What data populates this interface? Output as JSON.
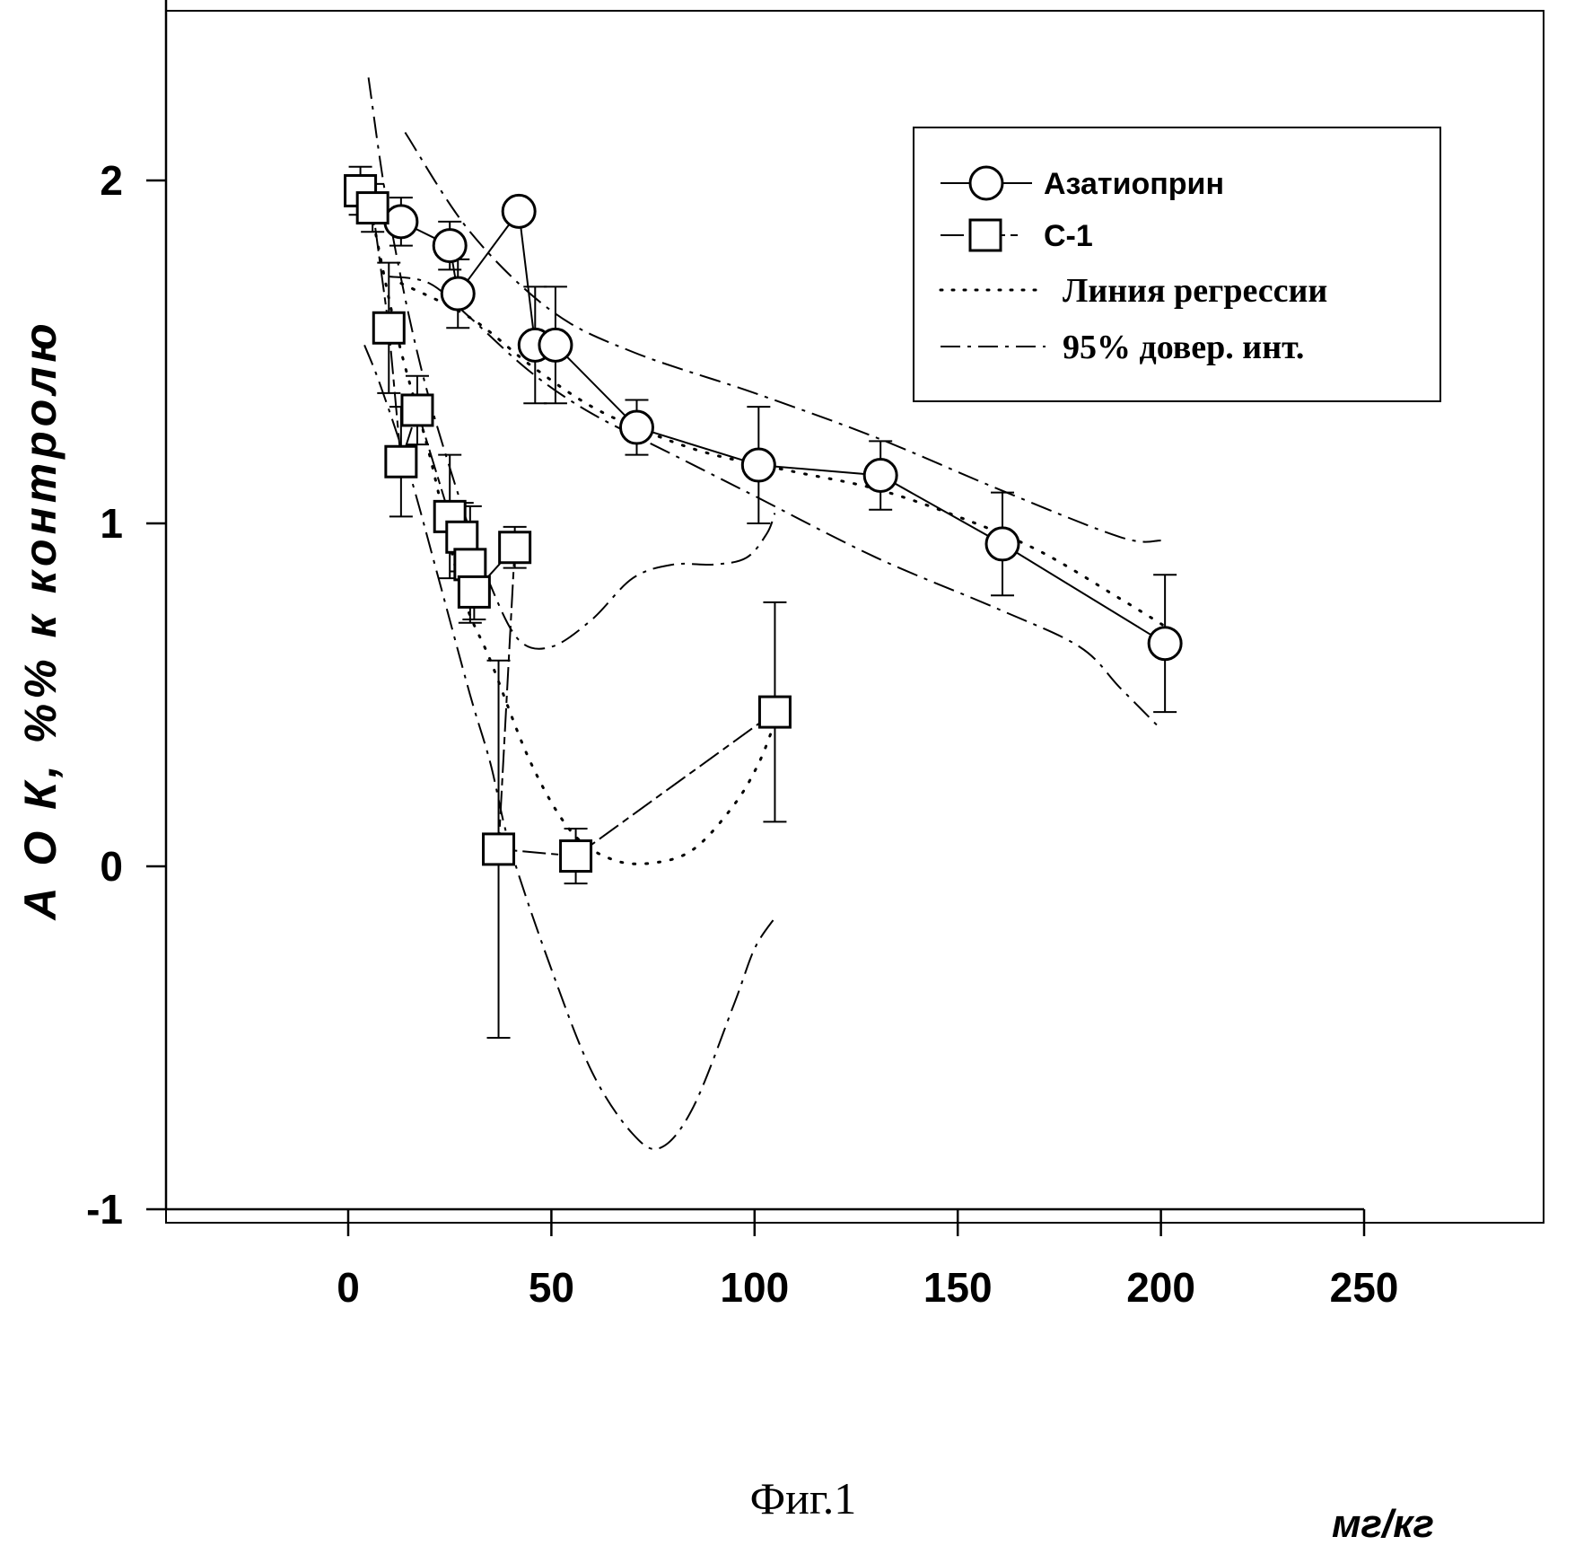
{
  "chart_data": {
    "type": "scatter",
    "xlabel": "мг/кг",
    "ylabel": "А О К, %% к контролю",
    "caption": "Фиг.1",
    "xlim": [
      -45,
      250
    ],
    "ylim": [
      -1,
      2.5
    ],
    "xticks": [
      0,
      50,
      100,
      150,
      200,
      250
    ],
    "yticks": [
      -1,
      0,
      1,
      2
    ],
    "xtick_labels": [
      "0",
      "50",
      "100",
      "150",
      "200",
      "250"
    ],
    "ytick_labels": [
      "-1",
      "0",
      "1",
      "2"
    ],
    "legend_position": "top-right",
    "legend": {
      "azathioprine": "Азатиоприн",
      "c1": "С-1",
      "regression": "Линия регрессии",
      "ci": "95% довер. инт."
    },
    "series": [
      {
        "name": "Азатиоприн",
        "marker": "circle",
        "x": [
          13,
          25,
          27,
          42,
          46,
          51,
          71,
          101,
          131,
          161,
          201
        ],
        "y": [
          1.88,
          1.81,
          1.67,
          1.91,
          1.52,
          1.52,
          1.28,
          1.17,
          1.14,
          0.94,
          0.65
        ],
        "err": [
          0.07,
          0.07,
          0.1,
          0,
          0.17,
          0.17,
          0.08,
          0.17,
          0.1,
          0.15,
          0.2
        ]
      },
      {
        "name": "С-1",
        "marker": "square",
        "x": [
          3,
          6,
          10,
          13,
          17,
          25,
          28,
          30,
          31,
          41,
          37,
          56,
          105
        ],
        "y": [
          1.97,
          1.92,
          1.57,
          1.18,
          1.33,
          1.02,
          0.96,
          0.88,
          0.8,
          0.93,
          0.05,
          0.03,
          0.45
        ],
        "err": [
          0.07,
          0.07,
          0.19,
          0.16,
          0.1,
          0.18,
          0.1,
          0.17,
          0.08,
          0.06,
          0.55,
          0.08,
          0.32
        ]
      },
      {
        "name": "Линия регрессии",
        "style": "dotted",
        "segments": [
          {
            "x": [
              13,
              30,
              45,
              60,
              75,
              90,
              110,
              130,
              150,
              170,
              190,
              201
            ],
            "y": [
              1.7,
              1.6,
              1.46,
              1.34,
              1.26,
              1.2,
              1.15,
              1.1,
              1.02,
              0.92,
              0.78,
              0.7
            ]
          },
          {
            "x": [
              5,
              12,
              20,
              28,
              35,
              45,
              55,
              65,
              75,
              85,
              95,
              101,
              105
            ],
            "y": [
              1.95,
              1.55,
              1.2,
              0.8,
              0.6,
              0.3,
              0.1,
              0.02,
              0.01,
              0.05,
              0.18,
              0.3,
              0.42
            ]
          }
        ]
      },
      {
        "name": "95% довер. инт.",
        "style": "dashdot",
        "segments": [
          {
            "x": [
              14,
              30,
              50,
              70,
              100,
              130,
              160,
              190,
              200
            ],
            "y": [
              2.14,
              1.85,
              1.62,
              1.5,
              1.38,
              1.25,
              1.1,
              0.96,
              0.95
            ]
          },
          {
            "x": [
              10,
              20,
              30,
              45,
              60,
              80,
              100,
              130,
              160,
              180,
              190,
              200
            ],
            "y": [
              1.72,
              1.7,
              1.6,
              1.44,
              1.32,
              1.2,
              1.08,
              0.9,
              0.75,
              0.64,
              0.52,
              0.4
            ]
          },
          {
            "x": [
              5,
              10,
              18,
              28,
              35,
              42,
              50,
              60,
              70,
              80,
              90,
              98,
              103,
              105
            ],
            "y": [
              2.3,
              1.9,
              1.45,
              1.05,
              0.82,
              0.66,
              0.64,
              0.72,
              0.84,
              0.88,
              0.88,
              0.9,
              0.97,
              1.03
            ]
          },
          {
            "x": [
              4,
              8,
              15,
              22,
              30,
              35,
              40,
              50,
              60,
              70,
              77,
              85,
              95,
              100,
              105
            ],
            "y": [
              1.52,
              1.4,
              1.15,
              0.85,
              0.5,
              0.3,
              0.05,
              -0.3,
              -0.6,
              -0.78,
              -0.82,
              -0.7,
              -0.4,
              -0.24,
              -0.15
            ]
          }
        ]
      }
    ]
  }
}
